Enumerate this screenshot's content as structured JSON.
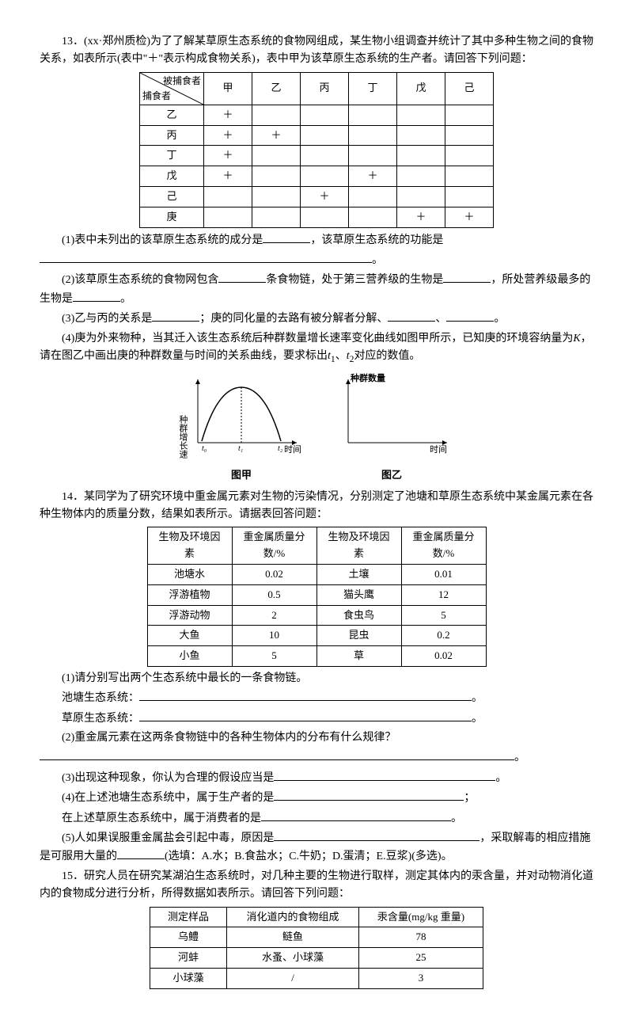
{
  "q13": {
    "num": "13．",
    "src": "(xx·郑州质检)",
    "lead": "为了了解某草原生态系统的食物网组成，某生物小组调查并统计了其中多种生物之间的食物关系，如表所示(表中\"＋\"表示构成食物关系)，表中甲为该草原生态系统的生产者。请回答下列问题：",
    "table": {
      "diag_top": "被捕食者",
      "diag_bot": "捕食者",
      "cols": [
        "甲",
        "乙",
        "丙",
        "丁",
        "戊",
        "己"
      ],
      "rows": [
        {
          "label": "乙",
          "vals": [
            "＋",
            "",
            "",
            "",
            "",
            ""
          ]
        },
        {
          "label": "丙",
          "vals": [
            "＋",
            "＋",
            "",
            "",
            "",
            ""
          ]
        },
        {
          "label": "丁",
          "vals": [
            "＋",
            "",
            "",
            "",
            "",
            ""
          ]
        },
        {
          "label": "戊",
          "vals": [
            "＋",
            "",
            "",
            "＋",
            "",
            ""
          ]
        },
        {
          "label": "己",
          "vals": [
            "",
            "",
            "＋",
            "",
            "",
            ""
          ]
        },
        {
          "label": "庚",
          "vals": [
            "",
            "",
            "",
            "",
            "＋",
            "＋"
          ]
        }
      ]
    },
    "sub1a": "(1)表中未列出的该草原生态系统的成分是",
    "sub1b": "，该草原生态系统的功能是",
    "sub1c": "。",
    "sub2a": "(2)该草原生态系统的食物网包含",
    "sub2b": "条食物链，处于第三营养级的生物是",
    "sub2c": "，所处营养级最多的生物是",
    "sub2d": "。",
    "sub3a": "(3)乙与丙的关系是",
    "sub3b": "；庚的同化量的去路有被分解者分解、",
    "sub3c": "、",
    "sub3d": "。",
    "sub4a": "(4)庚为外来物种，当其迁入该生态系统后种群数量增长速率变化曲线如图甲所示，已知庚的环境容纳量为",
    "sub4k": "K",
    "sub4b": "，请在图乙中画出庚的种群数量与时间的关系曲线，要求标出",
    "sub4t1": "t",
    "sub4t1s": "1",
    "sub4t2": "、",
    "sub4t2a": "t",
    "sub4t2s": "2",
    "sub4c": "对应的数值。",
    "chart1": {
      "y_label": "种群增长速率",
      "x_label": "时间",
      "title": "图甲",
      "ticks": [
        "t₀",
        "t₁",
        "t₂"
      ]
    },
    "chart2": {
      "y_label": "种群数量",
      "x_label": "时间",
      "title": "图乙"
    }
  },
  "q14": {
    "num": "14．",
    "lead": "某同学为了研究环境中重金属元素对生物的污染情况，分别测定了池塘和草原生态系统中某金属元素在各种生物体内的质量分数，结果如表所示。请据表回答问题：",
    "table": {
      "col1": "生物及环境因素",
      "col2": "重金属质量分数/%",
      "col3": "生物及环境因素",
      "col4": "重金属质量分数/%",
      "rows": [
        [
          "池塘水",
          "0.02",
          "土壤",
          "0.01"
        ],
        [
          "浮游植物",
          "0.5",
          "猫头鹰",
          "12"
        ],
        [
          "浮游动物",
          "2",
          "食虫鸟",
          "5"
        ],
        [
          "大鱼",
          "10",
          "昆虫",
          "0.2"
        ],
        [
          "小鱼",
          "5",
          "草",
          "0.02"
        ]
      ]
    },
    "sub1": "(1)请分别写出两个生态系统中最长的一条食物链。",
    "sub1a": "池塘生态系统：",
    "sub1b": "草原生态系统：",
    "sub1end": "。",
    "sub2": "(2)重金属元素在这两条食物链中的各种生物体内的分布有什么规律？",
    "sub2end": "。",
    "sub3": "(3)出现这种现象，你认为合理的假设应当是",
    "sub3end": "。",
    "sub4a": "(4)在上述池塘生态系统中，属于生产者的是",
    "sub4b": "在上述草原生态系统中，属于消费者的是",
    "sub4sep": "；",
    "sub4end": "。",
    "sub5a": "(5)人如果误服重金属盐会引起中毒，原因是",
    "sub5b": "，采取解毒的相应措施是可服用大量的",
    "sub5c": "(选填：A.水；B.食盐水；C.牛奶；D.蛋清；E.豆浆)(多选)。"
  },
  "q15": {
    "num": "15．",
    "lead": "研究人员在研究某湖泊生态系统时，对几种主要的生物进行取样，测定其体内的汞含量，并对动物消化道内的食物成分进行分析，所得数据如表所示。请回答下列问题：",
    "table": {
      "col1": "测定样品",
      "col2": "消化道内的食物组成",
      "col3": "汞含量(mg/kg 重量)",
      "rows": [
        [
          "乌鳢",
          "鲢鱼",
          "78"
        ],
        [
          "河蚌",
          "水蚤、小球藻",
          "25"
        ],
        [
          "小球藻",
          "/",
          "3"
        ]
      ]
    }
  }
}
